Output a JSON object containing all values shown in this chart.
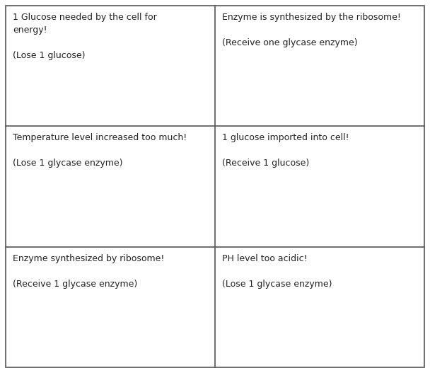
{
  "background_color": "#ffffff",
  "text_color": "#222222",
  "grid_rows": 3,
  "grid_cols": 2,
  "cells": [
    {
      "row": 0,
      "col": 0,
      "lines": [
        "1 Glucose needed by the cell for",
        "energy!",
        "",
        "(Lose 1 glucose)"
      ]
    },
    {
      "row": 0,
      "col": 1,
      "lines": [
        "Enzyme is synthesized by the ribosome!",
        "",
        "(Receive one glycase enzyme)"
      ]
    },
    {
      "row": 1,
      "col": 0,
      "lines": [
        "Temperature level increased too much!",
        "",
        "(Lose 1 glycase enzyme)"
      ]
    },
    {
      "row": 1,
      "col": 1,
      "lines": [
        "1 glucose imported into cell!",
        "",
        "(Receive 1 glucose)"
      ]
    },
    {
      "row": 2,
      "col": 0,
      "lines": [
        "Enzyme synthesized by ribosome!",
        "",
        "(Receive 1 glycase enzyme)"
      ]
    },
    {
      "row": 2,
      "col": 1,
      "lines": [
        "PH level too acidic!",
        "",
        "(Lose 1 glycase enzyme)"
      ]
    }
  ],
  "font_size": 9.0,
  "border_color": "#555555",
  "border_lw": 1.2,
  "fig_width": 6.08,
  "fig_height": 5.27,
  "dpi": 100
}
